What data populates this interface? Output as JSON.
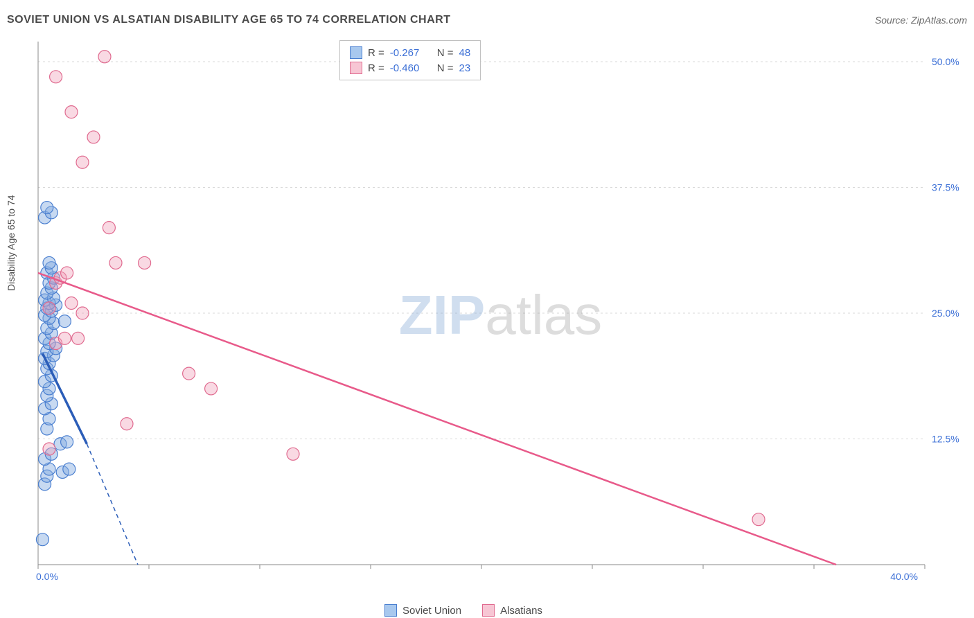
{
  "header": {
    "title": "SOVIET UNION VS ALSATIAN DISABILITY AGE 65 TO 74 CORRELATION CHART",
    "source": "Source: ZipAtlas.com"
  },
  "y_axis_label": "Disability Age 65 to 74",
  "watermark": {
    "part1": "ZIP",
    "part2": "atlas"
  },
  "legend_top": {
    "rows": [
      {
        "swatch_fill": "#a8c8ee",
        "swatch_border": "#4a7fd0",
        "r_label": "R =",
        "r_value": "-0.267",
        "n_label": "N =",
        "n_value": "48"
      },
      {
        "swatch_fill": "#f7c6d4",
        "swatch_border": "#e06a8f",
        "r_label": "R =",
        "r_value": "-0.460",
        "n_label": "N =",
        "n_value": "23"
      }
    ]
  },
  "legend_bottom": {
    "items": [
      {
        "swatch_fill": "#a8c8ee",
        "swatch_border": "#4a7fd0",
        "label": "Soviet Union"
      },
      {
        "swatch_fill": "#f7c6d4",
        "swatch_border": "#e06a8f",
        "label": "Alsatians"
      }
    ]
  },
  "chart": {
    "type": "scatter",
    "background_color": "#ffffff",
    "grid_color": "#d8d8d8",
    "axis_color": "#8a8a8a",
    "tick_color": "#8a8a8a",
    "xlim": [
      0,
      40
    ],
    "ylim": [
      0,
      52
    ],
    "x_ticks": [
      0,
      5,
      10,
      15,
      20,
      25,
      30,
      35,
      40
    ],
    "x_tick_labels": {
      "0": "0.0%",
      "40": "40.0%"
    },
    "y_gridlines": [
      12.5,
      25.0,
      37.5,
      50.0
    ],
    "y_tick_labels": [
      "12.5%",
      "25.0%",
      "37.5%",
      "50.0%"
    ],
    "marker_radius": 9,
    "marker_stroke_width": 1.2,
    "series": [
      {
        "name": "soviet_union",
        "fill": "rgba(130,170,225,0.45)",
        "stroke": "#4a7fd0",
        "points": [
          [
            0.2,
            2.5
          ],
          [
            0.3,
            8.0
          ],
          [
            0.4,
            8.8
          ],
          [
            0.5,
            9.5
          ],
          [
            0.3,
            10.5
          ],
          [
            0.6,
            11.0
          ],
          [
            1.0,
            12.0
          ],
          [
            1.3,
            12.2
          ],
          [
            0.4,
            13.5
          ],
          [
            0.5,
            14.5
          ],
          [
            0.3,
            15.5
          ],
          [
            0.6,
            16.0
          ],
          [
            0.4,
            16.8
          ],
          [
            0.5,
            17.5
          ],
          [
            0.3,
            18.2
          ],
          [
            0.6,
            18.8
          ],
          [
            0.4,
            19.5
          ],
          [
            0.5,
            20.0
          ],
          [
            0.3,
            20.5
          ],
          [
            0.7,
            20.8
          ],
          [
            0.4,
            21.2
          ],
          [
            0.8,
            21.5
          ],
          [
            0.5,
            22.0
          ],
          [
            0.3,
            22.5
          ],
          [
            0.6,
            23.0
          ],
          [
            0.4,
            23.5
          ],
          [
            0.7,
            24.0
          ],
          [
            1.2,
            24.2
          ],
          [
            0.5,
            24.5
          ],
          [
            0.3,
            24.8
          ],
          [
            0.6,
            25.2
          ],
          [
            0.4,
            25.5
          ],
          [
            0.8,
            25.8
          ],
          [
            0.5,
            26.0
          ],
          [
            0.3,
            26.3
          ],
          [
            0.7,
            26.5
          ],
          [
            0.4,
            27.0
          ],
          [
            0.6,
            27.5
          ],
          [
            0.5,
            28.0
          ],
          [
            0.7,
            28.5
          ],
          [
            0.4,
            29.0
          ],
          [
            0.6,
            29.5
          ],
          [
            0.5,
            30.0
          ],
          [
            0.3,
            34.5
          ],
          [
            0.6,
            35.0
          ],
          [
            0.4,
            35.5
          ],
          [
            1.1,
            9.2
          ],
          [
            1.4,
            9.5
          ]
        ],
        "trend_line": {
          "color": "#2b5db8",
          "width": 3.5,
          "solid": [
            [
              0.2,
              21.0
            ],
            [
              2.2,
              12.0
            ]
          ],
          "dashed": [
            [
              2.2,
              12.0
            ],
            [
              4.5,
              0.0
            ]
          ]
        }
      },
      {
        "name": "alsatians",
        "fill": "rgba(240,160,185,0.40)",
        "stroke": "#e06a8f",
        "points": [
          [
            0.5,
            11.5
          ],
          [
            0.8,
            22.0
          ],
          [
            1.2,
            22.5
          ],
          [
            2.0,
            25.0
          ],
          [
            0.5,
            25.5
          ],
          [
            1.5,
            26.0
          ],
          [
            0.8,
            28.0
          ],
          [
            1.0,
            28.5
          ],
          [
            1.3,
            29.0
          ],
          [
            3.5,
            30.0
          ],
          [
            4.8,
            30.0
          ],
          [
            3.2,
            33.5
          ],
          [
            2.0,
            40.0
          ],
          [
            2.5,
            42.5
          ],
          [
            1.5,
            45.0
          ],
          [
            0.8,
            48.5
          ],
          [
            3.0,
            50.5
          ],
          [
            4.0,
            14.0
          ],
          [
            1.8,
            22.5
          ],
          [
            6.8,
            19.0
          ],
          [
            7.8,
            17.5
          ],
          [
            11.5,
            11.0
          ],
          [
            32.5,
            4.5
          ]
        ],
        "trend_line": {
          "color": "#e85a8a",
          "width": 2.5,
          "solid": [
            [
              0.0,
              29.0
            ],
            [
              36.0,
              0.0
            ]
          ],
          "dashed": null
        }
      }
    ]
  }
}
